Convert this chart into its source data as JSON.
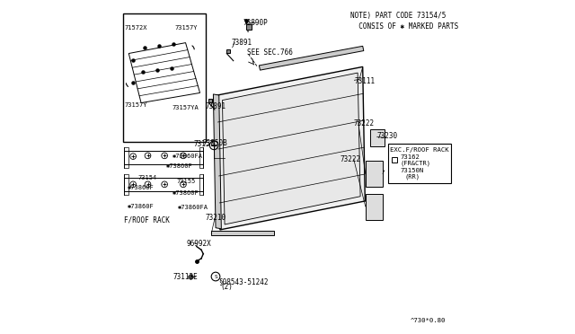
{
  "bg_color": "#ffffff",
  "line_color": "#000000",
  "fig_label": "^730*0.80",
  "note_line1": "NOTE) PART CODE 73154/5",
  "note_line2": "  CONSIS OF ✱ MARKED PARTS",
  "see_sec": "SEE SEC.766",
  "exc_label": "EXC.F/ROOF RACK"
}
